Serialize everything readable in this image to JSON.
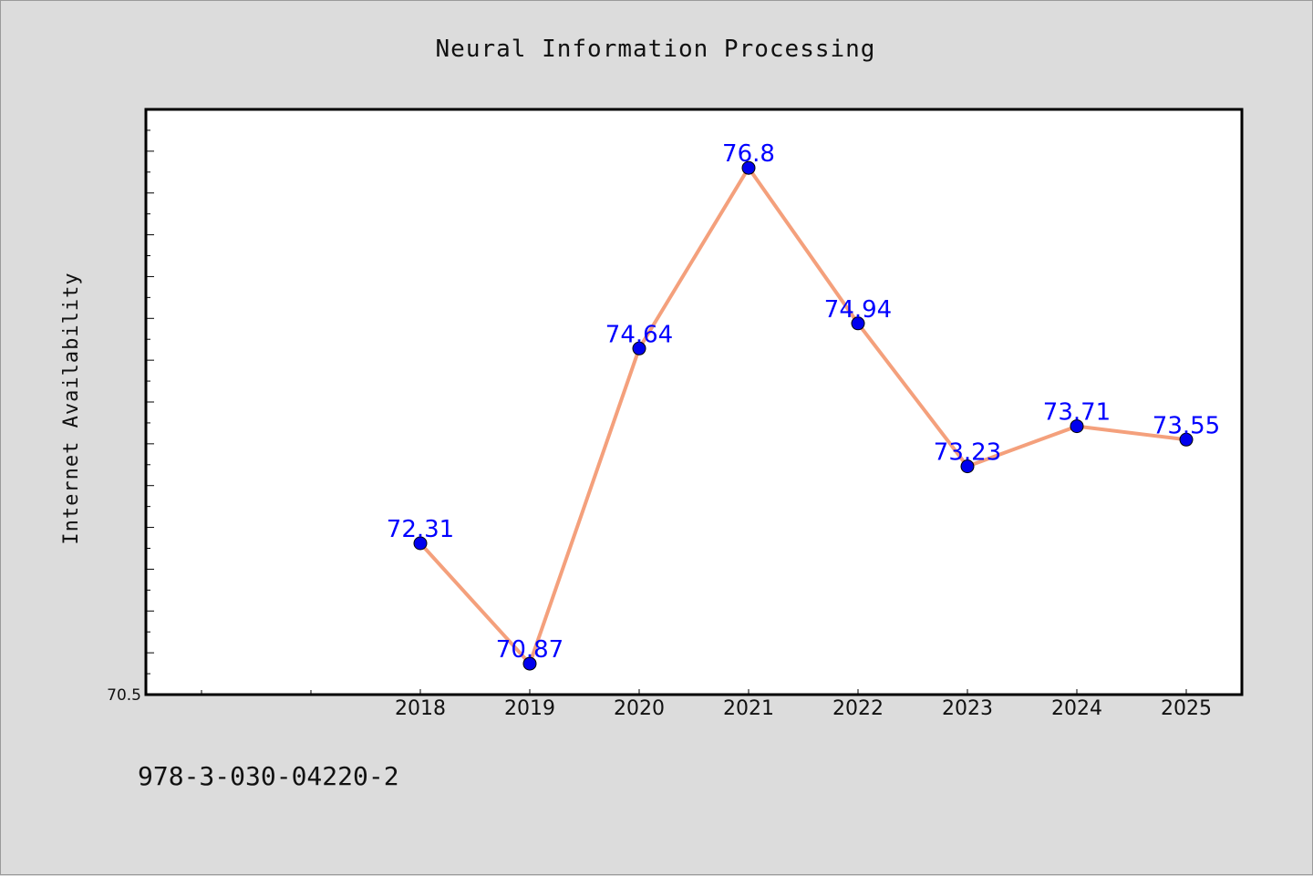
{
  "chart_data": {
    "type": "line",
    "title": "Neural Information Processing",
    "xlabel": "",
    "ylabel": "Internet Availability",
    "categories": [
      "2018",
      "2019",
      "2020",
      "2021",
      "2022",
      "2023",
      "2024",
      "2025"
    ],
    "series": [
      {
        "values": [
          72.31,
          70.87,
          74.64,
          76.8,
          74.94,
          73.23,
          73.71,
          73.55
        ],
        "labels": [
          "72.31",
          "70.87",
          "74.64",
          "76.8",
          "74.94",
          "73.23",
          "73.71",
          "73.55"
        ],
        "line_color": "#f4a07c",
        "marker_color": "#0000ee"
      }
    ],
    "ylim": [
      70.5,
      77.5
    ],
    "y_tick_labels": [
      "70.5"
    ],
    "grid": false,
    "legend": "none"
  },
  "footer": {
    "isbn": "978-3-030-04220-2"
  },
  "colors": {
    "background": "#dcdcdc",
    "plot_background": "#ffffff",
    "data_label": "#0000ff"
  }
}
